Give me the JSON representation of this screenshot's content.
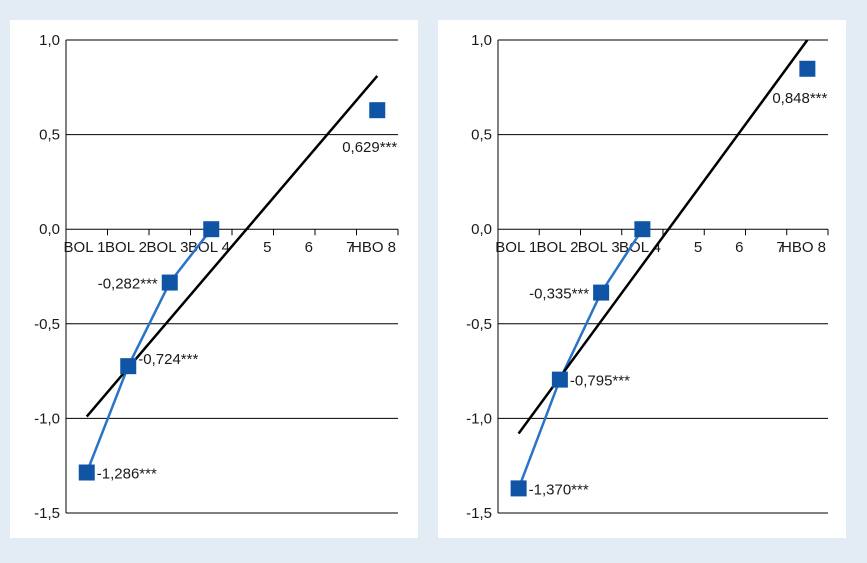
{
  "colors": {
    "background": "#e3ecf5",
    "panel": "#ffffff",
    "marker": "#0f54a5",
    "connector": "#2a74c8",
    "trendline": "#000000",
    "gridline": "#000000"
  },
  "chart_data": [
    {
      "type": "line",
      "x_ticks": [
        {
          "x": 1,
          "label": "BOL 1"
        },
        {
          "x": 2,
          "label": "BOL 2"
        },
        {
          "x": 3,
          "label": "BOL 3"
        },
        {
          "x": 4,
          "label": "BOL 4"
        },
        {
          "x": 5,
          "label": "5"
        },
        {
          "x": 6,
          "label": "6"
        },
        {
          "x": 7,
          "label": "7"
        },
        {
          "x": 8,
          "label": "HBO 8"
        }
      ],
      "xlim": [
        0.5,
        8.5
      ],
      "ylim": [
        -1.5,
        1.0
      ],
      "y_ticks": [
        {
          "value": 1.0,
          "label": "1,0"
        },
        {
          "value": 0.5,
          "label": "0,5"
        },
        {
          "value": 0.0,
          "label": "0,0"
        },
        {
          "value": -0.5,
          "label": "-0,5"
        },
        {
          "value": -1.0,
          "label": "-1,0"
        },
        {
          "value": -1.5,
          "label": "-1,5"
        }
      ],
      "grid": true,
      "points": [
        {
          "x": 1,
          "y": -1.286,
          "label": "-1,286***",
          "connected": true
        },
        {
          "x": 2,
          "y": -0.724,
          "label": "-0,724***",
          "connected": true
        },
        {
          "x": 3,
          "y": -0.282,
          "label": "-0,282***",
          "connected": true
        },
        {
          "x": 4,
          "y": 0.0,
          "label": "",
          "connected": true
        },
        {
          "x": 8,
          "y": 0.629,
          "label": "0,629***",
          "connected": false
        }
      ],
      "trendline": {
        "x": [
          1,
          8
        ],
        "y": [
          -0.99,
          0.81
        ]
      }
    },
    {
      "type": "line",
      "x_ticks": [
        {
          "x": 1,
          "label": "BOL 1"
        },
        {
          "x": 2,
          "label": "BOL 2"
        },
        {
          "x": 3,
          "label": "BOL 3"
        },
        {
          "x": 4,
          "label": "BOL 4"
        },
        {
          "x": 5,
          "label": "5"
        },
        {
          "x": 6,
          "label": "6"
        },
        {
          "x": 7,
          "label": "7"
        },
        {
          "x": 8,
          "label": "HBO 8"
        }
      ],
      "xlim": [
        0.5,
        8.5
      ],
      "ylim": [
        -1.5,
        1.0
      ],
      "y_ticks": [
        {
          "value": 1.0,
          "label": "1,0"
        },
        {
          "value": 0.5,
          "label": "0,5"
        },
        {
          "value": 0.0,
          "label": "0,0"
        },
        {
          "value": -0.5,
          "label": "-0,5"
        },
        {
          "value": -1.0,
          "label": "-1,0"
        },
        {
          "value": -1.5,
          "label": "-1,5"
        }
      ],
      "grid": true,
      "points": [
        {
          "x": 1,
          "y": -1.37,
          "label": "-1,370***",
          "connected": true
        },
        {
          "x": 2,
          "y": -0.795,
          "label": "-0,795***",
          "connected": true
        },
        {
          "x": 3,
          "y": -0.335,
          "label": "-0,335***",
          "connected": true
        },
        {
          "x": 4,
          "y": 0.0,
          "label": "",
          "connected": true
        },
        {
          "x": 8,
          "y": 0.848,
          "label": "0,848***",
          "connected": false
        }
      ],
      "trendline": {
        "x": [
          1,
          8
        ],
        "y": [
          -1.08,
          1.0
        ]
      }
    }
  ]
}
